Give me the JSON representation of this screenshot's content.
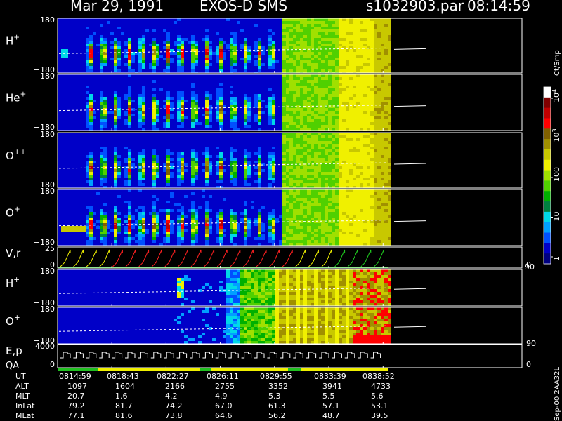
{
  "header": {
    "date": "Mar 29, 1991",
    "instrument": "EXOS-D SMS",
    "file": "s1032903.par",
    "time": "08:14:59"
  },
  "colorbar": {
    "unit": "Ct/Smp",
    "ticks": [
      {
        "label": "1",
        "value": 1
      },
      {
        "label": "10",
        "value": 10
      },
      {
        "label": "100",
        "value": 100
      },
      {
        "label": "10",
        "sup": "3",
        "value": 1000
      },
      {
        "label": "10",
        "sup": "4",
        "value": 10000
      }
    ],
    "colors": [
      "#000080",
      "#0000c8",
      "#0050ff",
      "#00a0ff",
      "#00d8e8",
      "#008040",
      "#00b000",
      "#50d000",
      "#a0e000",
      "#f0f000",
      "#c8c800",
      "#a09000",
      "#806000",
      "#ff0000",
      "#c00000",
      "#800000",
      "#ffffff"
    ]
  },
  "footer_text": "Sep-00  2AA32L",
  "chart_data": {
    "type": "heatmap",
    "time_ticks": [
      "0814:59",
      "0818:43",
      "0822:27",
      "0826:11",
      "0829:55",
      "0833:39",
      "0838:52"
    ],
    "panels": [
      {
        "id": "h-plus-1",
        "label": "H",
        "sup": "+",
        "ytop": "180",
        "ybot": "−180",
        "kind": "spectro",
        "species": "H"
      },
      {
        "id": "he-plus",
        "label": "He",
        "sup": "+",
        "ytop": "180",
        "ybot": "−180",
        "kind": "spectro",
        "species": "He"
      },
      {
        "id": "o-plus-plus",
        "label": "O",
        "sup": "++",
        "ytop": "180",
        "ybot": "−180",
        "kind": "spectro",
        "species": "O++"
      },
      {
        "id": "o-plus-1",
        "label": "O",
        "sup": "+",
        "ytop": "180",
        "ybot": "−180",
        "kind": "spectro",
        "species": "O"
      },
      {
        "id": "v-r",
        "label": "V,r",
        "ytop": "25",
        "ybot": "0",
        "right_top": "90",
        "right_bot": "0",
        "kind": "line"
      },
      {
        "id": "h-plus-2",
        "label": "H",
        "sup": "+",
        "ytop": "180",
        "ybot": "−180",
        "kind": "spectro2",
        "species": "H"
      },
      {
        "id": "o-plus-2",
        "label": "O",
        "sup": "+",
        "ytop": "180",
        "ybot": "−180",
        "right_bot": "90",
        "kind": "spectro2",
        "species": "O"
      },
      {
        "id": "e-p",
        "label": "E,p",
        "label2": "QA",
        "ytop": "4000",
        "ybot": "0",
        "right_bot": "0",
        "kind": "line"
      }
    ],
    "table": [
      {
        "name": "UT",
        "values": [
          "0814:59",
          "0818:43",
          "0822:27",
          "0826:11",
          "0829:55",
          "0833:39",
          "0838:52"
        ]
      },
      {
        "name": "ALT",
        "values": [
          "1097",
          "1604",
          "2166",
          "2755",
          "3352",
          "3941",
          "4733"
        ]
      },
      {
        "name": "MLT",
        "values": [
          "20.7",
          "1.6",
          "4.2",
          "4.9",
          "5.3",
          "5.5",
          "5.6"
        ]
      },
      {
        "name": "InLat",
        "values": [
          "79.2",
          "81.7",
          "74.2",
          "67.0",
          "61.3",
          "57.1",
          "53.1"
        ]
      },
      {
        "name": "MLat",
        "values": [
          "77.1",
          "81.6",
          "73.8",
          "64.6",
          "56.2",
          "48.7",
          "39.5"
        ]
      }
    ]
  }
}
